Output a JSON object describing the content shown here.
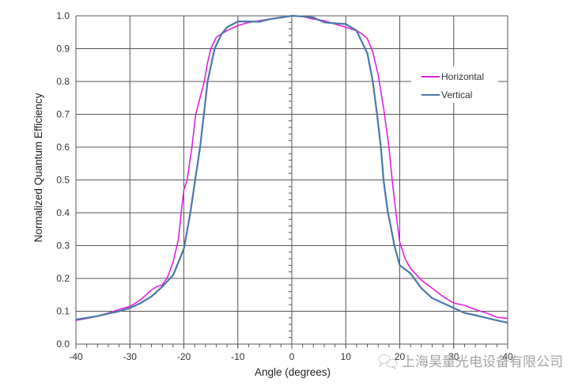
{
  "chart_data": {
    "type": "line",
    "title": "",
    "xlabel": "Angle (degrees)",
    "ylabel": "Normalized Quantum Efficiency",
    "xlim": [
      -40,
      40
    ],
    "ylim": [
      0.0,
      1.0
    ],
    "xticks": [
      -40,
      -30,
      -20,
      -10,
      0,
      10,
      20,
      30,
      40
    ],
    "xtick_labels": [
      "-40",
      "-30",
      "-20",
      "-10",
      "0",
      "10",
      "20",
      "30",
      "40"
    ],
    "yticks": [
      0.0,
      0.1,
      0.2,
      0.3,
      0.4,
      0.5,
      0.6,
      0.7,
      0.8,
      0.9,
      1.0
    ],
    "ytick_labels": [
      "0.0",
      "0.1",
      "0.2",
      "0.3",
      "0.4",
      "0.5",
      "0.6",
      "0.7",
      "0.8",
      "0.9",
      "1.0"
    ],
    "grid": true,
    "legend_position": "upper right (inside)",
    "series": [
      {
        "name": "Horizontal",
        "color": "#e020e0",
        "x": [
          -40,
          -38,
          -36,
          -34,
          -32,
          -30,
          -28,
          -26,
          -25,
          -24,
          -23,
          -22,
          -21,
          -20.5,
          -20,
          -19.4,
          -18.5,
          -17.8,
          -16.2,
          -15.7,
          -15,
          -14,
          -12,
          -10,
          -8,
          -6,
          -4,
          -2,
          0,
          2,
          4,
          6,
          8,
          10,
          12,
          13,
          14,
          15,
          16,
          17,
          18,
          18.6,
          19.3,
          20,
          21,
          22,
          24,
          26,
          28,
          30,
          32,
          34,
          36,
          38,
          40
        ],
        "y": [
          0.072,
          0.078,
          0.085,
          0.095,
          0.105,
          0.115,
          0.135,
          0.165,
          0.175,
          0.18,
          0.205,
          0.25,
          0.32,
          0.4,
          0.47,
          0.5,
          0.6,
          0.7,
          0.8,
          0.85,
          0.9,
          0.935,
          0.955,
          0.97,
          0.98,
          0.985,
          0.99,
          0.995,
          1.0,
          0.998,
          0.99,
          0.985,
          0.975,
          0.965,
          0.955,
          0.945,
          0.93,
          0.89,
          0.82,
          0.72,
          0.6,
          0.5,
          0.4,
          0.31,
          0.26,
          0.23,
          0.195,
          0.17,
          0.145,
          0.125,
          0.118,
          0.105,
          0.095,
          0.082,
          0.078
        ]
      },
      {
        "name": "Vertical",
        "color": "#4a78a8",
        "x": [
          -40,
          -38,
          -36,
          -34,
          -32,
          -30,
          -28,
          -26,
          -24,
          -22,
          -20,
          -18.8,
          -17.9,
          -17,
          -16.3,
          -15.6,
          -14.3,
          -13,
          -12,
          -10,
          -8,
          -6,
          -4,
          -2,
          0,
          2,
          4,
          6,
          8,
          10,
          12,
          14,
          15,
          15.8,
          16.5,
          17,
          17.8,
          18.2,
          19,
          20,
          22,
          24,
          26,
          28,
          30,
          32,
          34,
          36,
          38,
          40
        ],
        "y": [
          0.075,
          0.08,
          0.085,
          0.093,
          0.1,
          0.11,
          0.125,
          0.145,
          0.175,
          0.21,
          0.29,
          0.4,
          0.5,
          0.6,
          0.7,
          0.8,
          0.9,
          0.945,
          0.965,
          0.983,
          0.983,
          0.982,
          0.99,
          0.995,
          1.0,
          0.998,
          0.995,
          0.98,
          0.977,
          0.975,
          0.955,
          0.885,
          0.8,
          0.7,
          0.6,
          0.5,
          0.4,
          0.37,
          0.3,
          0.24,
          0.215,
          0.17,
          0.14,
          0.125,
          0.11,
          0.095,
          0.088,
          0.08,
          0.072,
          0.065
        ]
      }
    ]
  },
  "legend": {
    "items": [
      {
        "label": "Horizontal",
        "color": "#e020e0"
      },
      {
        "label": "Vertical",
        "color": "#4a78a8"
      }
    ]
  },
  "watermark": {
    "text": "上海昊量光电设备有限公司",
    "icon": "wechat-icon"
  }
}
